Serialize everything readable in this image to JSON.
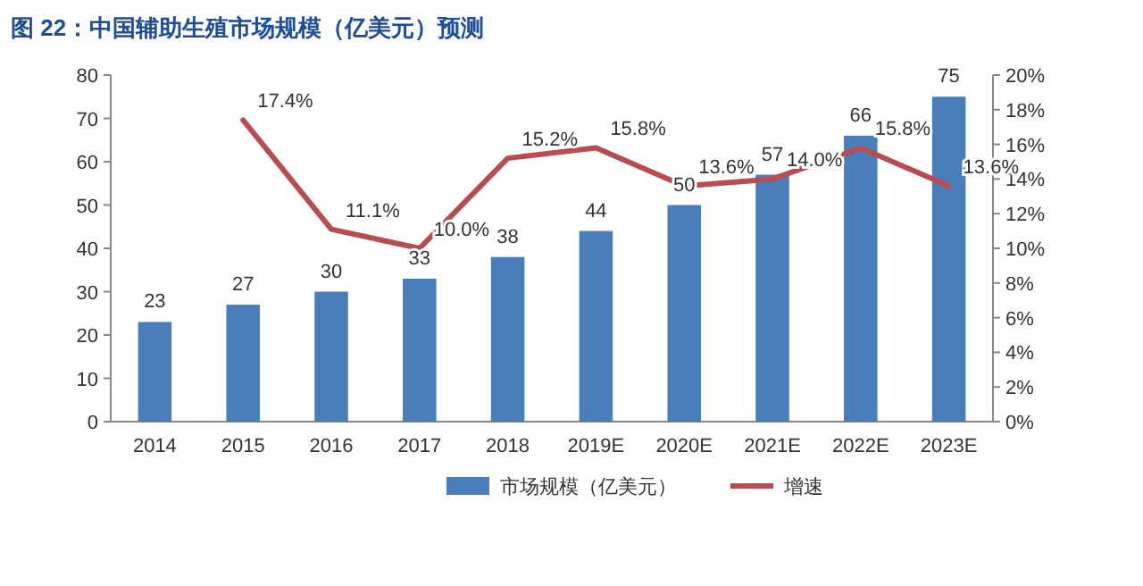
{
  "chart_data": {
    "type": "bar",
    "title": "图 22：中国辅助生殖市场规模（亿美元）预测",
    "categories": [
      "2014",
      "2015",
      "2016",
      "2017",
      "2018",
      "2019E",
      "2020E",
      "2021E",
      "2022E",
      "2023E"
    ],
    "series": [
      {
        "name": "市场规模（亿美元）",
        "color": "#4a7ebb",
        "values": [
          23,
          27,
          30,
          33,
          38,
          44,
          50,
          57,
          66,
          75
        ],
        "value_labels": [
          "23",
          "27",
          "30",
          "33",
          "38",
          "44",
          "50",
          "57",
          "66",
          "75"
        ]
      },
      {
        "name": "增速",
        "type": "line",
        "axis": "y2",
        "color": "#b84c50",
        "values": [
          null,
          17.4,
          11.1,
          10.0,
          15.2,
          15.8,
          13.6,
          14.0,
          15.8,
          13.6
        ],
        "value_labels": [
          null,
          "17.4%",
          "11.1%",
          "10.0%",
          "15.2%",
          "15.8%",
          "13.6%",
          "14.0%",
          "15.8%",
          "13.6%"
        ]
      }
    ],
    "ylim": [
      0,
      80
    ],
    "yticks": [
      0,
      10,
      20,
      30,
      40,
      50,
      60,
      70,
      80
    ],
    "y2lim": [
      0,
      20
    ],
    "y2ticks": [
      {
        "value": 0,
        "label": "0%"
      },
      {
        "value": 2,
        "label": "2%"
      },
      {
        "value": 4,
        "label": "4%"
      },
      {
        "value": 6,
        "label": "6%"
      },
      {
        "value": 8,
        "label": "8%"
      },
      {
        "value": 10,
        "label": "10%"
      },
      {
        "value": 12,
        "label": "12%"
      },
      {
        "value": 14,
        "label": "14%"
      },
      {
        "value": 16,
        "label": "16%"
      },
      {
        "value": 18,
        "label": "18%"
      },
      {
        "value": 20,
        "label": "20%"
      }
    ],
    "legend": "bottom",
    "grid": false,
    "marker": "none"
  }
}
